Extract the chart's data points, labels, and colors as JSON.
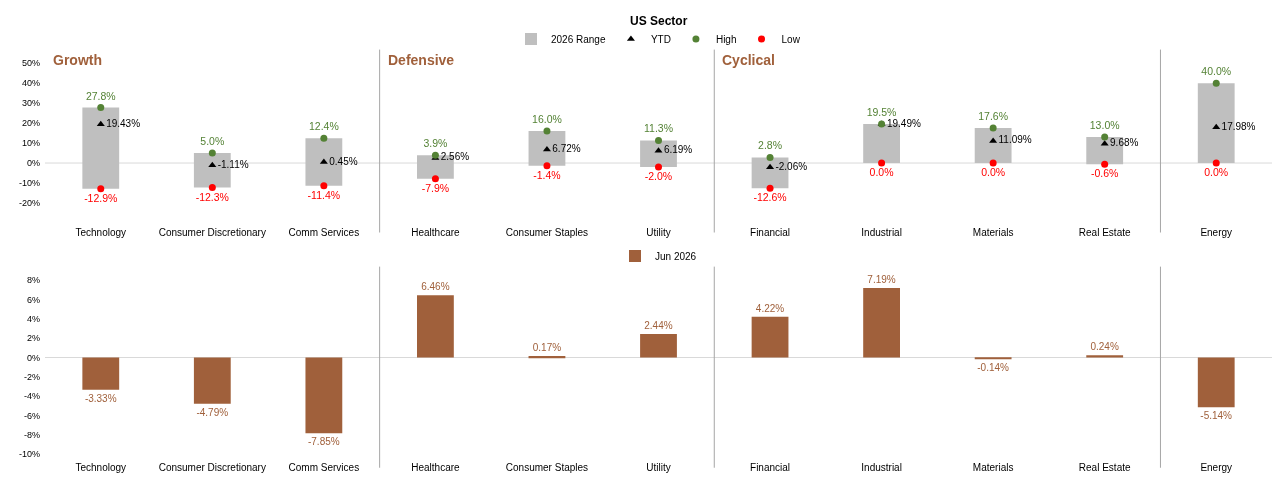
{
  "chart_data": [
    {
      "type": "bar",
      "title": "US Sector",
      "legend": "top",
      "grid": false,
      "categories": [
        "Technology",
        "Consumer Discretionary",
        "Comm Services",
        "Healthcare",
        "Consumer Staples",
        "Utility",
        "Financial",
        "Industrial",
        "Materials",
        "Real Estate",
        "Energy"
      ],
      "series": [
        {
          "name": "2026 Range",
          "color": "#bfbfbf",
          "base": [
            -12.9,
            -12.3,
            -11.4,
            -7.9,
            -1.4,
            -2.0,
            -12.6,
            0.0,
            0.0,
            -0.6,
            0.0
          ],
          "values": [
            40.7,
            17.3,
            23.8,
            11.8,
            17.4,
            13.3,
            15.4,
            19.5,
            17.6,
            13.6,
            40.0
          ]
        },
        {
          "name": "YTD",
          "type": "scatter",
          "marker": "triangle",
          "color": "#000000",
          "values": [
            19.43,
            -1.11,
            0.45,
            2.56,
            6.72,
            6.19,
            -2.06,
            19.49,
            11.09,
            9.68,
            17.98
          ],
          "value_labels": [
            "19.43%",
            "-1.11%",
            "0.45%",
            "2.56%",
            "6.72%",
            "6.19%",
            "-2.06%",
            "19.49%",
            "11.09%",
            "9.68%",
            "17.98%"
          ]
        },
        {
          "name": "High",
          "type": "scatter",
          "marker": "circle",
          "color": "#548235",
          "values": [
            27.8,
            5.0,
            12.4,
            3.9,
            16.0,
            11.3,
            2.8,
            19.5,
            17.6,
            13.0,
            40.0
          ],
          "value_labels": [
            "27.8%",
            "5.0%",
            "12.4%",
            "3.9%",
            "16.0%",
            "11.3%",
            "2.8%",
            "19.5%",
            "17.6%",
            "13.0%",
            "40.0%"
          ]
        },
        {
          "name": "Low",
          "type": "scatter",
          "marker": "circle",
          "color": "#ff0000",
          "values": [
            -12.9,
            -12.3,
            -11.4,
            -7.9,
            -1.4,
            -2.0,
            -12.6,
            0.0,
            0.0,
            -0.6,
            0.0
          ],
          "value_labels": [
            "-12.9%",
            "-12.3%",
            "-11.4%",
            "-7.9%",
            "-1.4%",
            "-2.0%",
            "-12.6%",
            "0.0%",
            "0.0%",
            "-0.6%",
            "0.0%"
          ]
        }
      ],
      "ylim": [
        -20,
        50
      ],
      "yticks": [
        {
          "value": -20,
          "label": "-20%"
        },
        {
          "value": -10,
          "label": "-10%"
        },
        {
          "value": 0,
          "label": "0%"
        },
        {
          "value": 10,
          "label": "10%"
        },
        {
          "value": 20,
          "label": "20%"
        },
        {
          "value": 30,
          "label": "30%"
        },
        {
          "value": 40,
          "label": "40%"
        },
        {
          "value": 50,
          "label": "50%"
        }
      ],
      "ref_lines": [
        {
          "axis": "y",
          "value": 0,
          "color": "#d9d9d9"
        }
      ],
      "annotations": [
        "Growth",
        "Defensive",
        "Cyclical"
      ]
    },
    {
      "type": "bar",
      "legend": "top",
      "grid": false,
      "categories": [
        "Technology",
        "Consumer Discretionary",
        "Comm Services",
        "Healthcare",
        "Consumer Staples",
        "Utility",
        "Financial",
        "Industrial",
        "Materials",
        "Real Estate",
        "Energy"
      ],
      "series": [
        {
          "name": "Jun 2026",
          "color": "#a0603b",
          "values": [
            -3.33,
            -4.79,
            -7.85,
            6.46,
            0.17,
            2.44,
            4.22,
            7.19,
            -0.14,
            0.24,
            -5.14
          ],
          "value_labels": [
            "-3.33%",
            "-4.79%",
            "-7.85%",
            "6.46%",
            "0.17%",
            "2.44%",
            "4.22%",
            "7.19%",
            "-0.14%",
            "0.24%",
            "-5.14%"
          ]
        }
      ],
      "ylim": [
        -10,
        8
      ],
      "yticks": [
        {
          "value": -10,
          "label": "-10%"
        },
        {
          "value": -8,
          "label": "-8%"
        },
        {
          "value": -6,
          "label": "-6%"
        },
        {
          "value": -4,
          "label": "-4%"
        },
        {
          "value": -2,
          "label": "-2%"
        },
        {
          "value": 0,
          "label": "0%"
        },
        {
          "value": 2,
          "label": "2%"
        },
        {
          "value": 4,
          "label": "4%"
        },
        {
          "value": 6,
          "label": "6%"
        },
        {
          "value": 8,
          "label": "8%"
        }
      ],
      "ref_lines": [
        {
          "axis": "y",
          "value": 0,
          "color": "#d9d9d9"
        }
      ]
    }
  ]
}
